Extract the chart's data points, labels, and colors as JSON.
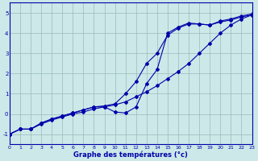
{
  "xlabel": "Graphe des températures (°c)",
  "background_color": "#cce8e8",
  "line_color": "#0000aa",
  "grid_color": "#99bbbb",
  "xlim": [
    0,
    23
  ],
  "ylim": [
    -1.5,
    5.5
  ],
  "xticks": [
    0,
    1,
    2,
    3,
    4,
    5,
    6,
    7,
    8,
    9,
    10,
    11,
    12,
    13,
    14,
    15,
    16,
    17,
    18,
    19,
    20,
    21,
    22,
    23
  ],
  "yticks": [
    -1,
    0,
    1,
    2,
    3,
    4,
    5
  ],
  "line1_x": [
    0,
    1,
    2,
    3,
    4,
    5,
    6,
    7,
    8,
    9,
    10,
    11,
    12,
    13,
    14,
    15,
    16,
    17,
    18,
    19,
    20,
    21,
    22,
    23
  ],
  "line1_y": [
    -1.0,
    -0.75,
    -0.75,
    -0.5,
    -0.3,
    -0.15,
    0.0,
    0.1,
    0.25,
    0.35,
    0.45,
    0.6,
    0.85,
    1.1,
    1.4,
    1.75,
    2.1,
    2.5,
    3.0,
    3.5,
    4.0,
    4.4,
    4.7,
    4.9
  ],
  "line2_x": [
    0,
    1,
    2,
    3,
    4,
    5,
    6,
    7,
    8,
    9,
    10,
    11,
    12,
    13,
    14,
    15,
    16,
    17,
    18,
    19,
    20,
    21,
    22,
    23
  ],
  "line2_y": [
    -1.0,
    -0.75,
    -0.75,
    -0.45,
    -0.25,
    -0.1,
    0.05,
    0.2,
    0.35,
    0.35,
    0.1,
    0.05,
    0.35,
    1.5,
    2.2,
    4.0,
    4.3,
    4.5,
    4.45,
    4.4,
    4.6,
    4.7,
    4.85,
    4.95
  ],
  "line3_x": [
    0,
    1,
    2,
    3,
    4,
    5,
    6,
    7,
    8,
    9,
    10,
    11,
    12,
    13,
    14,
    15,
    16,
    17,
    18,
    19,
    20,
    21,
    22,
    23
  ],
  "line3_y": [
    -1.0,
    -0.75,
    -0.75,
    -0.45,
    -0.25,
    -0.1,
    0.05,
    0.2,
    0.35,
    0.4,
    0.5,
    1.0,
    1.6,
    2.5,
    3.0,
    3.9,
    4.25,
    4.45,
    4.45,
    4.4,
    4.55,
    4.65,
    4.8,
    4.9
  ]
}
